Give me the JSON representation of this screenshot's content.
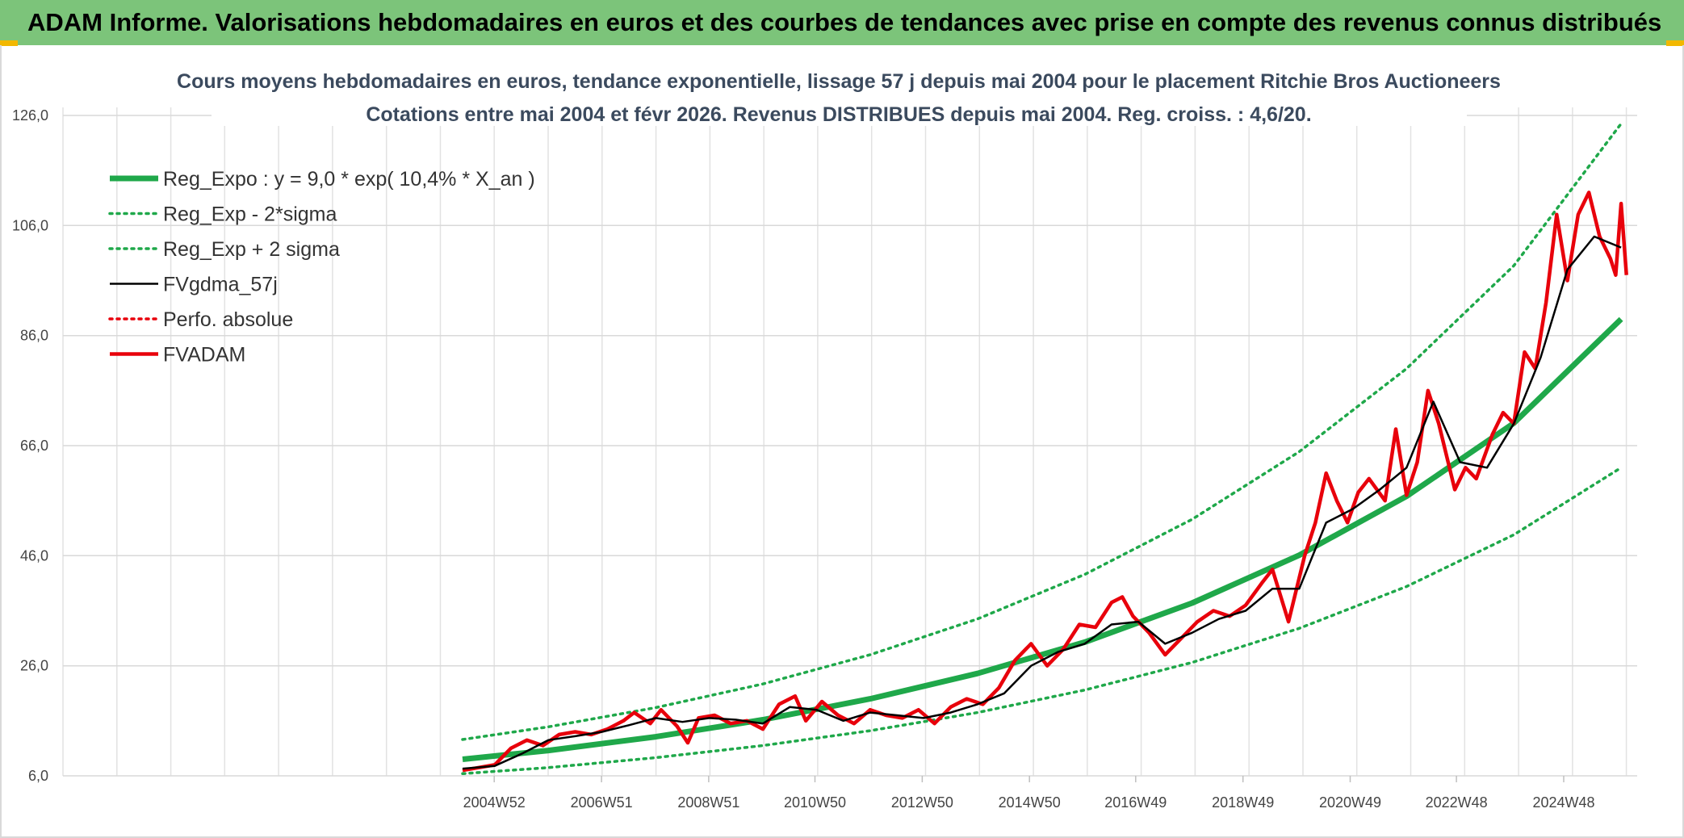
{
  "banner": {
    "title": "ADAM Informe. Valorisations hebdomadaires en euros et des courbes de tendances avec prise en compte des revenus connus distribués"
  },
  "colors": {
    "banner_bg": "#7cc47a",
    "trend_green": "#1fa84a",
    "price_red": "#e8000b",
    "smooth_black": "#000000",
    "grid": "#d9d9d9"
  },
  "chart_data": {
    "type": "line",
    "title": "Cours moyens hebdomadaires en euros, tendance exponentielle, lissage 57 j depuis mai 2004 pour le placement Ritchie Bros Auctioneers",
    "subtitle": "Cotations entre mai 2004 et févr 2026. Revenus DISTRIBUES depuis mai 2004. Reg. croiss. : 4,6/20.",
    "xlabel": "",
    "ylabel": "",
    "ylim": [
      6,
      126
    ],
    "xlim": [
      1996.95,
      2026.3
    ],
    "y_ticks": [
      "6,0",
      "26,0",
      "46,0",
      "66,0",
      "86,0",
      "106,0",
      "126,0"
    ],
    "x_tick_labels": [
      "2004W52",
      "2006W51",
      "2008W51",
      "2010W50",
      "2012W50",
      "2014W50",
      "2016W49",
      "2018W49",
      "2020W49",
      "2022W48",
      "2024W48"
    ],
    "x_tick_years": [
      2004.99,
      2006.99,
      2008.99,
      2010.97,
      2012.97,
      2014.97,
      2016.95,
      2018.95,
      2020.95,
      2022.93,
      2024.93
    ],
    "legend_position": "top-left",
    "series": [
      {
        "name": "Reg_Expo : y = 9,0 * exp( 10,4% *  X_an )",
        "style": "solid-thick",
        "color": "#1fa84a",
        "x": [
          2004.4,
          2006.0,
          2008.0,
          2010.0,
          2012.0,
          2014.0,
          2016.0,
          2018.0,
          2020.0,
          2022.0,
          2024.0,
          2026.0
        ],
        "values": [
          9.0,
          10.6,
          13.1,
          16.2,
          20.0,
          24.6,
          30.3,
          37.4,
          46.1,
          56.8,
          70.1,
          89.0
        ]
      },
      {
        "name": "Reg_Exp - 2*sigma",
        "style": "dotted",
        "color": "#1fa84a",
        "x": [
          2004.4,
          2006.0,
          2008.0,
          2010.0,
          2012.0,
          2014.0,
          2016.0,
          2018.0,
          2020.0,
          2022.0,
          2024.0,
          2026.0
        ],
        "values": [
          6.4,
          7.5,
          9.3,
          11.5,
          14.2,
          17.5,
          21.6,
          26.6,
          32.8,
          40.4,
          49.8,
          62.0
        ]
      },
      {
        "name": "Reg_Exp + 2 sigma",
        "style": "dotted",
        "color": "#1fa84a",
        "x": [
          2004.4,
          2006.0,
          2008.0,
          2010.0,
          2012.0,
          2014.0,
          2016.0,
          2018.0,
          2020.0,
          2022.0,
          2024.0,
          2026.0
        ],
        "values": [
          12.6,
          14.9,
          18.4,
          22.7,
          28.0,
          34.5,
          42.6,
          52.6,
          64.9,
          80.0,
          98.7,
          124.5
        ]
      },
      {
        "name": "FVgdma_57j",
        "style": "solid",
        "color": "#000000",
        "x": [
          2004.4,
          2005.0,
          2005.5,
          2006.0,
          2006.5,
          2007.0,
          2007.5,
          2008.0,
          2008.5,
          2009.0,
          2009.5,
          2010.0,
          2010.5,
          2011.0,
          2011.5,
          2012.0,
          2012.5,
          2013.0,
          2013.5,
          2014.0,
          2014.5,
          2015.0,
          2015.5,
          2016.0,
          2016.5,
          2017.0,
          2017.5,
          2018.0,
          2018.5,
          2019.0,
          2019.5,
          2020.0,
          2020.5,
          2021.0,
          2021.5,
          2022.0,
          2022.5,
          2023.0,
          2023.5,
          2024.0,
          2024.5,
          2025.0,
          2025.5,
          2026.0
        ],
        "values": [
          7.3,
          7.8,
          10.0,
          12.5,
          13.2,
          14.0,
          15.2,
          16.5,
          15.8,
          16.5,
          16.2,
          15.5,
          18.5,
          18.0,
          16.0,
          17.5,
          17.0,
          16.5,
          17.5,
          19.0,
          21.0,
          26.0,
          28.5,
          30.0,
          33.5,
          34.0,
          30.0,
          32.0,
          34.5,
          36.0,
          40.0,
          40.0,
          52.0,
          54.5,
          58.0,
          62.0,
          74.0,
          63.0,
          62.0,
          70.0,
          82.0,
          98.0,
          104.0,
          102.0
        ]
      },
      {
        "name": "Perfo. absolue",
        "style": "dotted",
        "color": "#e8000b",
        "x": [],
        "values": []
      },
      {
        "name": "FVADAM",
        "style": "solid-thick",
        "color": "#e8000b",
        "x": [
          2004.4,
          2004.7,
          2005.0,
          2005.3,
          2005.6,
          2005.9,
          2006.2,
          2006.5,
          2006.8,
          2007.1,
          2007.4,
          2007.6,
          2007.9,
          2008.1,
          2008.4,
          2008.6,
          2008.8,
          2009.1,
          2009.4,
          2009.7,
          2010.0,
          2010.3,
          2010.6,
          2010.8,
          2011.1,
          2011.4,
          2011.7,
          2012.0,
          2012.3,
          2012.6,
          2012.9,
          2013.2,
          2013.5,
          2013.8,
          2014.1,
          2014.4,
          2014.7,
          2015.0,
          2015.3,
          2015.6,
          2015.9,
          2016.2,
          2016.5,
          2016.7,
          2016.9,
          2017.2,
          2017.5,
          2017.8,
          2018.1,
          2018.4,
          2018.7,
          2019.0,
          2019.3,
          2019.5,
          2019.8,
          2020.1,
          2020.3,
          2020.5,
          2020.7,
          2020.9,
          2021.1,
          2021.3,
          2021.6,
          2021.8,
          2022.0,
          2022.2,
          2022.4,
          2022.6,
          2022.9,
          2023.1,
          2023.3,
          2023.6,
          2023.8,
          2024.0,
          2024.2,
          2024.4,
          2024.6,
          2024.8,
          2025.0,
          2025.2,
          2025.4,
          2025.6,
          2025.8,
          2025.9,
          2026.0,
          2026.1
        ],
        "values": [
          7.0,
          7.5,
          8.0,
          11.0,
          12.5,
          11.5,
          13.5,
          14.0,
          13.5,
          14.5,
          16.0,
          17.5,
          15.5,
          18.0,
          15.0,
          12.0,
          16.5,
          17.0,
          15.5,
          16.0,
          14.5,
          19.0,
          20.5,
          16.0,
          19.5,
          17.0,
          15.5,
          18.0,
          17.0,
          16.5,
          18.0,
          15.5,
          18.5,
          20.0,
          19.0,
          22.0,
          27.0,
          30.0,
          26.0,
          29.0,
          33.5,
          33.0,
          37.5,
          38.5,
          35.0,
          32.0,
          28.0,
          31.0,
          34.0,
          36.0,
          35.0,
          37.0,
          41.0,
          43.5,
          34.0,
          46.0,
          52.0,
          61.0,
          56.0,
          52.0,
          57.5,
          60.0,
          56.0,
          69.0,
          57.0,
          63.0,
          76.0,
          70.0,
          58.0,
          62.0,
          60.0,
          68.0,
          72.0,
          70.0,
          83.0,
          80.0,
          92.0,
          108.0,
          96.0,
          108.0,
          112.0,
          104.0,
          100.0,
          97.0,
          110.0,
          97.0
        ]
      }
    ]
  }
}
